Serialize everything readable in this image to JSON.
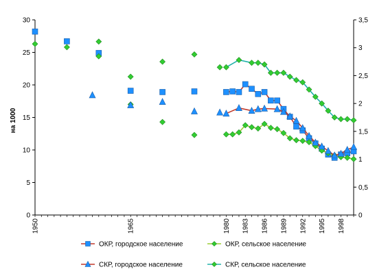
{
  "chart_data": {
    "type": "line",
    "ylabel_left": "на 1000",
    "ylim_left": [
      0,
      30
    ],
    "yticks_left": [
      "0",
      "5",
      "10",
      "15",
      "20",
      "25",
      "30"
    ],
    "ylim_right": [
      0,
      3.5
    ],
    "yticks_right": [
      "0",
      "0,5",
      "1",
      "1,5",
      "2",
      "2,5",
      "3",
      "3,5"
    ],
    "xlim": [
      1950,
      2000
    ],
    "xticks": [
      1950,
      1965,
      1980,
      1983,
      1986,
      1989,
      1992,
      1995,
      1998
    ],
    "grid": false,
    "legend_position": "bottom",
    "series": [
      {
        "name": "ОКР, городское население",
        "axis": "left",
        "marker": "square",
        "color": "#1e90ff",
        "line_color": "#c0392b",
        "points": [
          [
            1950,
            28.2
          ],
          [
            1955,
            26.7
          ],
          [
            1960,
            24.9
          ],
          [
            1965,
            19.1
          ],
          [
            1970,
            18.9
          ],
          [
            1975,
            19.0
          ],
          [
            1980,
            18.9
          ],
          [
            1981,
            19.0
          ],
          [
            1982,
            18.9
          ],
          [
            1983,
            20.1
          ],
          [
            1984,
            19.4
          ],
          [
            1985,
            18.6
          ],
          [
            1986,
            18.9
          ],
          [
            1987,
            17.6
          ],
          [
            1988,
            17.6
          ],
          [
            1989,
            16.3
          ],
          [
            1990,
            15.1
          ],
          [
            1991,
            13.6
          ],
          [
            1992,
            13.0
          ],
          [
            1993,
            11.8
          ],
          [
            1994,
            11.0
          ],
          [
            1995,
            10.2
          ],
          [
            1996,
            9.3
          ],
          [
            1997,
            8.8
          ],
          [
            1998,
            9.3
          ],
          [
            1999,
            9.5
          ],
          [
            2000,
            9.8
          ]
        ]
      },
      {
        "name": "ОКР, сельское население",
        "axis": "left",
        "marker": "diamond",
        "color": "#32cd32",
        "line_color": "#9acd32",
        "points": [
          [
            1950,
            26.3
          ],
          [
            1955,
            25.8
          ],
          [
            1960,
            24.4
          ],
          [
            1965,
            17.0
          ],
          [
            1970,
            14.3
          ],
          [
            1975,
            12.3
          ],
          [
            1980,
            12.4
          ],
          [
            1981,
            12.4
          ],
          [
            1982,
            12.7
          ],
          [
            1983,
            13.8
          ],
          [
            1984,
            13.5
          ],
          [
            1985,
            13.3
          ],
          [
            1986,
            14.0
          ],
          [
            1987,
            13.4
          ],
          [
            1988,
            13.2
          ],
          [
            1989,
            12.6
          ],
          [
            1990,
            11.8
          ],
          [
            1991,
            11.5
          ],
          [
            1992,
            11.4
          ],
          [
            1993,
            11.2
          ],
          [
            1994,
            10.6
          ],
          [
            1995,
            9.9
          ],
          [
            1996,
            9.5
          ],
          [
            1997,
            9.2
          ],
          [
            1998,
            8.9
          ],
          [
            1999,
            8.8
          ],
          [
            2000,
            8.6
          ]
        ]
      },
      {
        "name": "СКР, городское население",
        "axis": "right",
        "marker": "triangle",
        "color": "#1e90ff",
        "line_color": "#c0392b",
        "points": [
          [
            1959,
            2.15
          ],
          [
            1965,
            1.97
          ],
          [
            1970,
            2.03
          ],
          [
            1975,
            1.86
          ],
          [
            1979,
            1.84
          ],
          [
            1980,
            1.82
          ],
          [
            1982,
            1.92
          ],
          [
            1984,
            1.87
          ],
          [
            1985,
            1.9
          ],
          [
            1986,
            1.91
          ],
          [
            1988,
            1.9
          ],
          [
            1989,
            1.85
          ],
          [
            1990,
            1.77
          ],
          [
            1991,
            1.69
          ],
          [
            1992,
            1.56
          ],
          [
            1993,
            1.42
          ],
          [
            1994,
            1.3
          ],
          [
            1995,
            1.23
          ],
          [
            1996,
            1.15
          ],
          [
            1997,
            1.07
          ],
          [
            1998,
            1.1
          ],
          [
            1999,
            1.17
          ],
          [
            2000,
            1.22
          ]
        ]
      },
      {
        "name": "СКР, сельское население",
        "axis": "right",
        "marker": "diamond",
        "color": "#32cd32",
        "line_color": "#20b2aa",
        "points": [
          [
            1960,
            3.11
          ],
          [
            1965,
            2.48
          ],
          [
            1970,
            2.75
          ],
          [
            1975,
            2.88
          ],
          [
            1979,
            2.65
          ],
          [
            1980,
            2.65
          ],
          [
            1982,
            2.78
          ],
          [
            1984,
            2.73
          ],
          [
            1985,
            2.73
          ],
          [
            1986,
            2.7
          ],
          [
            1987,
            2.55
          ],
          [
            1988,
            2.55
          ],
          [
            1989,
            2.55
          ],
          [
            1990,
            2.48
          ],
          [
            1991,
            2.42
          ],
          [
            1992,
            2.38
          ],
          [
            1993,
            2.25
          ],
          [
            1994,
            2.12
          ],
          [
            1995,
            2.0
          ],
          [
            1996,
            1.87
          ],
          [
            1997,
            1.75
          ],
          [
            1998,
            1.72
          ],
          [
            1999,
            1.72
          ],
          [
            2000,
            1.7
          ]
        ]
      }
    ]
  }
}
